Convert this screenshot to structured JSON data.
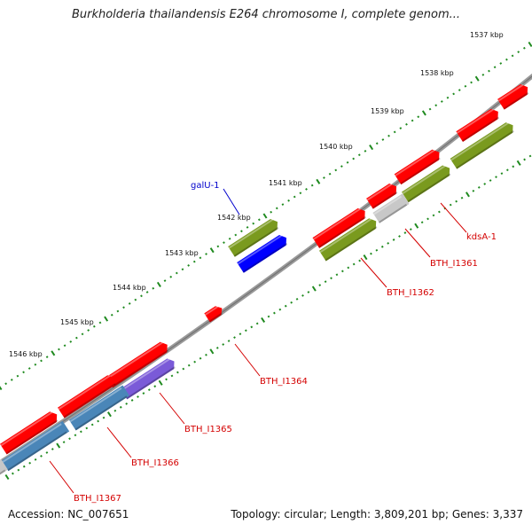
{
  "header": {
    "title": "Burkholderia thailandensis E264 chromosome I, complete genom..."
  },
  "footer": {
    "accession": "Accession: NC_007651",
    "summary": "Topology: circular; Length: 3,809,201 bp; Genes: 3,337"
  },
  "ruler": {
    "ticks": [
      "1537 kbp",
      "1538 kbp",
      "1539 kbp",
      "1540 kbp",
      "1541 kbp",
      "1542 kbp",
      "1543 kbp",
      "1544 kbp",
      "1545 kbp",
      "1546 kbp"
    ]
  },
  "colors": {
    "backbone": "#8a8a8a",
    "ruler_dots": "#1f8a1f",
    "cds": "#ff0000",
    "gene_green": "#7a9a1e",
    "gene_blue": "#0000ff",
    "gene_steel": "#4a86b8",
    "gene_violet": "#7a5ad8",
    "gene_gray": "#c8c8c8",
    "label_red": "#d40000",
    "label_blue": "#0000cc"
  },
  "genes": [
    {
      "label": "galU-1",
      "color": "label_blue"
    },
    {
      "label": "kdsA-1",
      "color": "label_red"
    },
    {
      "label": "BTH_I1361",
      "color": "label_red"
    },
    {
      "label": "BTH_I1362",
      "color": "label_red"
    },
    {
      "label": "BTH_I1364",
      "color": "label_red"
    },
    {
      "label": "BTH_I1365",
      "color": "label_red"
    },
    {
      "label": "BTH_I1366",
      "color": "label_red"
    },
    {
      "label": "BTH_I1367",
      "color": "label_red"
    }
  ]
}
